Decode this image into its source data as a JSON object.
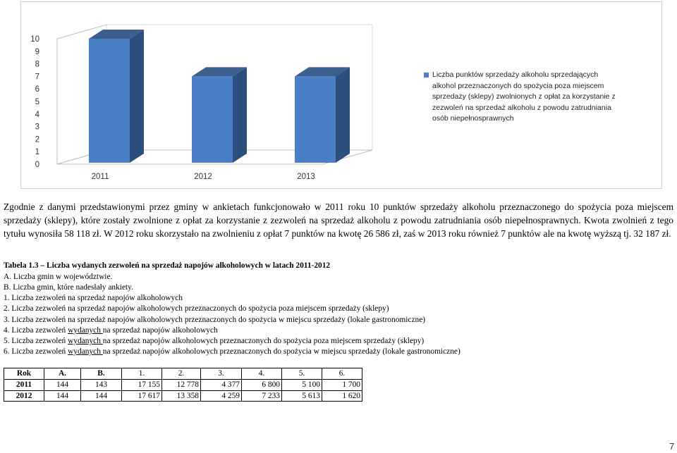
{
  "chart_data": {
    "type": "bar",
    "categories": [
      "2011",
      "2012",
      "2013"
    ],
    "series": [
      {
        "name": "Liczba punktów sprzedaży alkoholu sprzedających alkohol przeznaczonych do spożycia poza miejscem sprzedaży (sklepy) zwolnionych z opłat za korzystanie z zezwoleń na sprzedaż alkoholu z powodu zatrudniania osób niepełnosprawnych",
        "values": [
          10,
          7,
          7
        ]
      }
    ],
    "yticks": [
      "0",
      "1",
      "2",
      "3",
      "4",
      "5",
      "6",
      "7",
      "8",
      "9",
      "10"
    ],
    "ylim": [
      0,
      10
    ],
    "bar_color": "#4a7fc6",
    "bar_side_color": "#2c4f7e",
    "bar_top_color": "#3c5f8f",
    "legend_position": "right",
    "grid": false
  },
  "legend": {
    "lines": [
      "Liczba punktów sprzedaży alkoholu sprzedających",
      "alkohol przeznaczonych do spożycia poza miejscem",
      "sprzedaży (sklepy) zwolnionych z opłat  za korzystanie z",
      "zezwoleń na sprzedaż alkoholu  z powodu zatrudniania",
      "osób niepełnosprawnych"
    ]
  },
  "paragraph": "Zgodnie z danymi przedstawionymi przez gminy w ankietach funkcjonowało w 2011 roku 10 punktów sprzedaży alkoholu przeznaczonego do spożycia poza miejscem sprzedaży (sklepy), które zostały zwolnione z opłat za korzystanie z zezwoleń na sprzedaż alkoholu z powodu zatrudniania osób niepełnosprawnych. Kwota zwolnień z tego tytułu wynosiła 58 118 zł. W 2012 roku skorzystało na zwolnieniu z opłat 7 punktów na kwotę 26 586 zł, zaś w 2013 roku również 7 punktów ale na kwotę wyższą tj. 32 187 zł.",
  "list": {
    "title": "Tabela 1.3 – Liczba wydanych zezwoleń na sprzedaż napojów alkoholowych w latach 2011-2012",
    "a": "A. Liczba gmin w województwie.",
    "b": "B. Liczba gmin, które nadesłały ankiety.",
    "item1": "1.   Liczba zezwoleń na sprzedaż napojów alkoholowych",
    "item2": "2.   Liczba zezwoleń na sprzedaż napojów alkoholowych przeznaczonych do spożycia poza miejscem sprzedaży (sklepy)",
    "item3": "3.   Liczba zezwoleń na sprzedaż napojów alkoholowych przeznaczonych do spożycia w miejscu sprzedaży (lokale gastronomiczne)",
    "item4_pre": "4.   Liczba zezwoleń ",
    "item4_u": "wydanych ",
    "item4_post": "na sprzedaż napojów alkoholowych",
    "item5_pre": "5.   Liczba zezwoleń ",
    "item5_u": "wydanych ",
    "item5_post": " na sprzedaż napojów alkoholowych przeznaczonych do spożycia poza miejscem sprzedaży (sklepy)",
    "item6_pre": "6.   Liczba zezwoleń ",
    "item6_u": "wydanych ",
    "item6_post": "na sprzedaż napojów alkoholowych przeznaczonych do spożycia w miejscu sprzedaży (lokale gastronomiczne)"
  },
  "table": {
    "headers": [
      "Rok",
      "A.",
      "B.",
      "1.",
      "2.",
      "3.",
      "4.",
      "5.",
      "6."
    ],
    "rows": [
      [
        "2011",
        "144",
        "143",
        "17 155",
        "12 778",
        "4 377",
        "6 800",
        "5 100",
        "1 700"
      ],
      [
        "2012",
        "144",
        "144",
        "17 617",
        "13 358",
        "4 259",
        "7 233",
        "5 613",
        "1 620"
      ]
    ]
  },
  "page_number": "7"
}
